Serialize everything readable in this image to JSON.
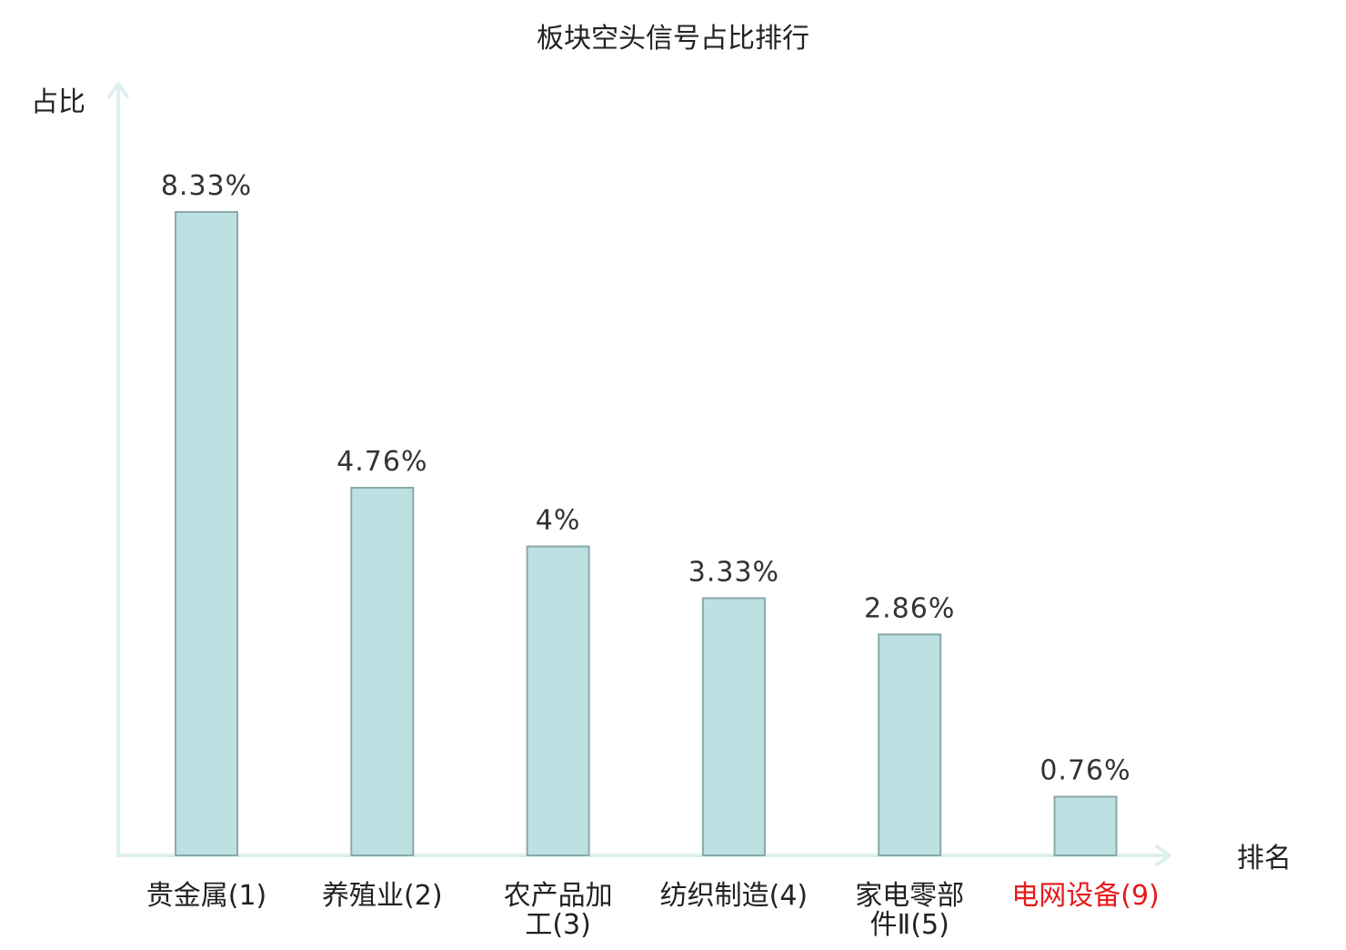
{
  "chart_data": {
    "type": "bar",
    "title": "板块空头信号占比排行",
    "ylabel": "占比",
    "xlabel": "排名",
    "categories": [
      "贵金属(1)",
      "养殖业(2)",
      "农产品加工(3)",
      "纺织制造(4)",
      "家电零部件Ⅱ(5)",
      "电网设备(9)"
    ],
    "category_lines": [
      [
        "贵金属(1)"
      ],
      [
        "养殖业(2)"
      ],
      [
        "农产品加",
        "工(3)"
      ],
      [
        "纺织制造(4)"
      ],
      [
        "家电零部",
        "件Ⅱ(5)"
      ],
      [
        "电网设备(9)"
      ]
    ],
    "values": [
      8.33,
      4.76,
      4,
      3.33,
      2.86,
      0.76
    ],
    "value_labels": [
      "8.33%",
      "4.76%",
      "4%",
      "3.33%",
      "2.86%",
      "0.76%"
    ],
    "highlight_index": 5,
    "ylim": [
      0,
      8.33
    ],
    "grid": false,
    "colors": {
      "bar_fill": "#bde0e2",
      "bar_stroke": "#8aa8aa",
      "axis": "#ddf0ee",
      "text": "#222222",
      "highlight_text": "#e8191b"
    }
  }
}
